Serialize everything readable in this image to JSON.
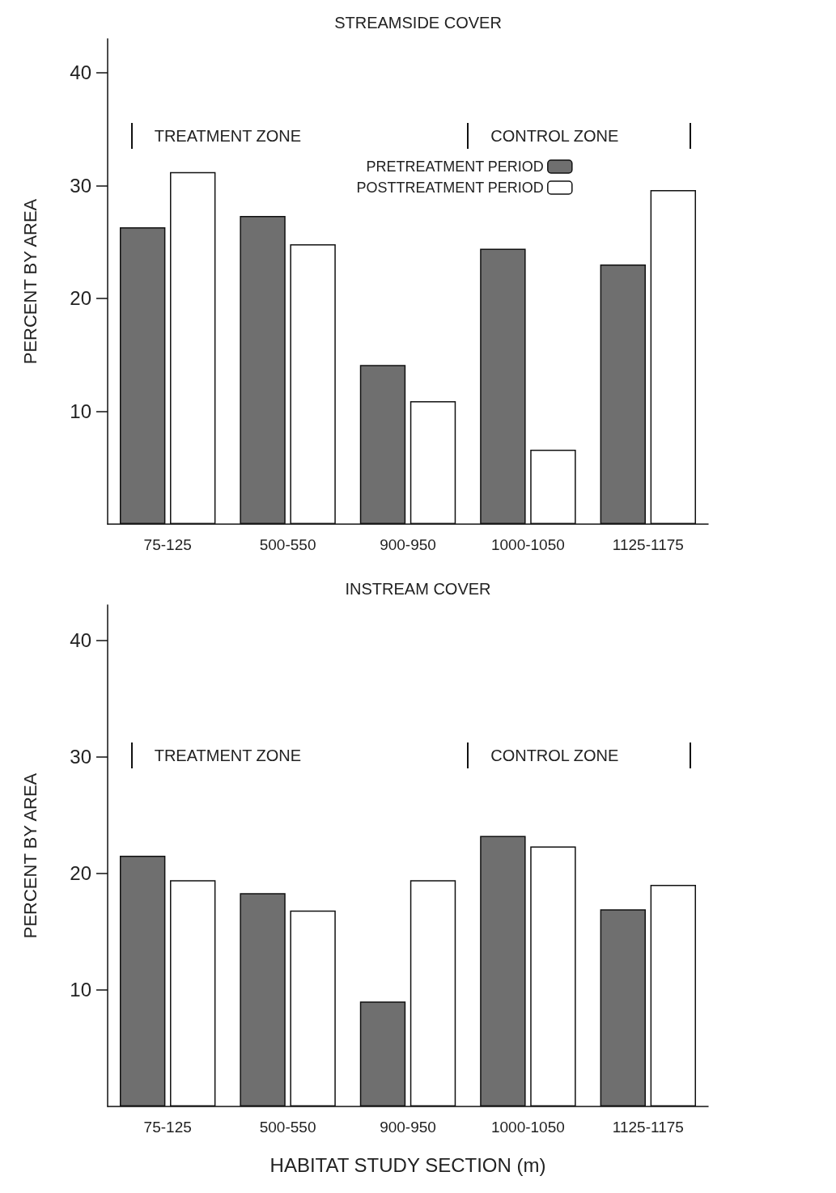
{
  "chart_data": [
    {
      "type": "bar",
      "title": "STREAMSIDE COVER",
      "ylabel": "PERCENT BY AREA",
      "categories": [
        "75-125",
        "500-550",
        "900-950",
        "1000-1050",
        "1125-1175"
      ],
      "series": [
        {
          "name": "PRETREATMENT PERIOD",
          "color": "#6f6f6f",
          "values": [
            26.3,
            27.3,
            14.1,
            24.4,
            23.0
          ]
        },
        {
          "name": "POSTTREATMENT PERIOD",
          "color": "#ffffff",
          "values": [
            31.2,
            24.8,
            10.9,
            6.6,
            29.6
          ]
        }
      ],
      "ylim": [
        0,
        43
      ],
      "yticks": [
        10,
        20,
        30,
        40
      ],
      "grid": false,
      "legend": "top",
      "annotations": [
        "TREATMENT ZONE",
        "CONTROL ZONE"
      ]
    },
    {
      "type": "bar",
      "title": "INSTREAM COVER",
      "ylabel": "PERCENT BY AREA",
      "xlabel": "HABITAT STUDY SECTION (m)",
      "categories": [
        "75-125",
        "500-550",
        "900-950",
        "1000-1050",
        "1125-1175"
      ],
      "series": [
        {
          "color": "#6f6f6f",
          "values": [
            21.5,
            18.3,
            9.0,
            23.2,
            16.9
          ]
        },
        {
          "color": "#ffffff",
          "values": [
            19.4,
            16.8,
            19.4,
            22.3,
            19.0
          ]
        }
      ],
      "ylim": [
        0,
        43
      ],
      "yticks": [
        10,
        20,
        30,
        40
      ],
      "grid": false,
      "legend": false,
      "annotations": [
        "TREATMENT ZONE",
        "CONTROL ZONE"
      ]
    }
  ]
}
